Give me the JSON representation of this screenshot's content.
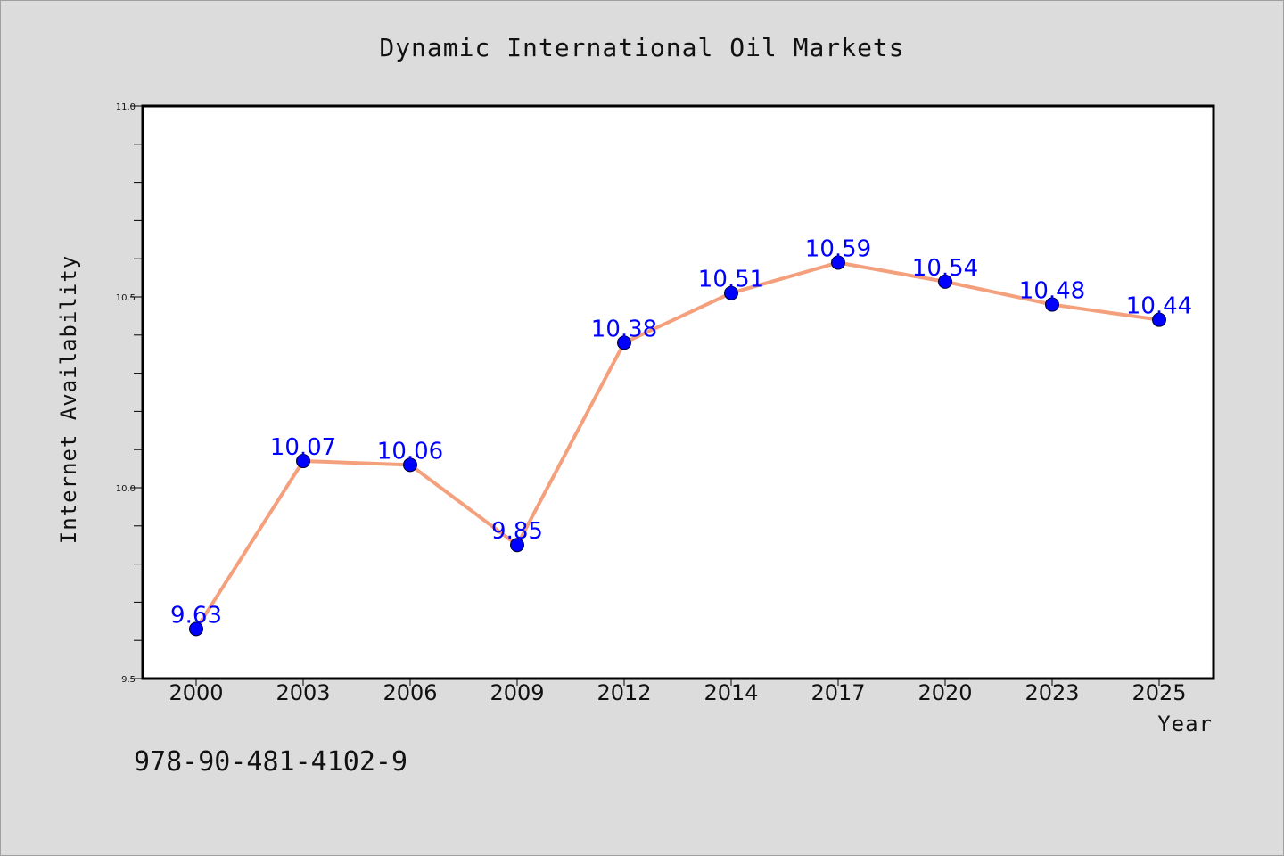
{
  "chart_data": {
    "type": "line",
    "title": "Dynamic International Oil Markets",
    "xlabel": "Year",
    "ylabel": "Internet Availability",
    "categories": [
      "2000",
      "2003",
      "2006",
      "2009",
      "2012",
      "2014",
      "2017",
      "2020",
      "2023",
      "2025"
    ],
    "series": [
      {
        "values": [
          9.63,
          10.07,
          10.06,
          9.85,
          10.38,
          10.51,
          10.59,
          10.54,
          10.48,
          10.44
        ]
      }
    ],
    "data_labels": [
      "9.63",
      "10.07",
      "10.06",
      "9.85",
      "10.38",
      "10.51",
      "10.59",
      "10.54",
      "10.48",
      "10.44"
    ],
    "ylim": [
      9.5,
      11.0
    ],
    "yticks": [
      "9.5",
      "10.0",
      "10.5",
      "11.0"
    ],
    "grid": false,
    "colors": {
      "line": "#f4a07c",
      "marker": "#0000ff",
      "label": "#0000ff"
    }
  },
  "footnote": "978-90-481-4102-9"
}
